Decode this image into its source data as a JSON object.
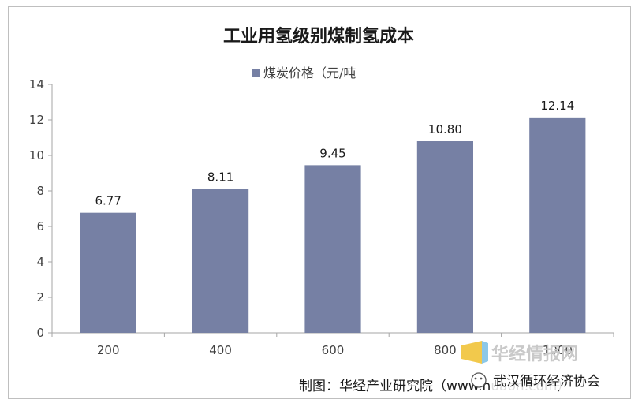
{
  "chart_data": {
    "type": "bar",
    "title": "工业用氢级别煤制氢成本",
    "categories": [
      "200",
      "400",
      "600",
      "800",
      "1000"
    ],
    "series": [
      {
        "name": "煤炭价格（元/吨",
        "values": [
          6.77,
          8.11,
          9.45,
          10.8,
          12.14
        ]
      }
    ],
    "data_labels": [
      "6.77",
      "8.11",
      "9.45",
      "10.80",
      "12.14"
    ],
    "ylim": [
      0,
      14
    ],
    "yticks": [
      0,
      2,
      4,
      6,
      8,
      10,
      12,
      14
    ],
    "legend_position": "top",
    "grid": false,
    "colors": {
      "bar": "#7680A4"
    }
  },
  "footer": {
    "credit": "制图：华经产业研究院（www.huaon.com）"
  },
  "watermark": {
    "site": "华经情报网",
    "account": "武汉循环经济协会"
  }
}
